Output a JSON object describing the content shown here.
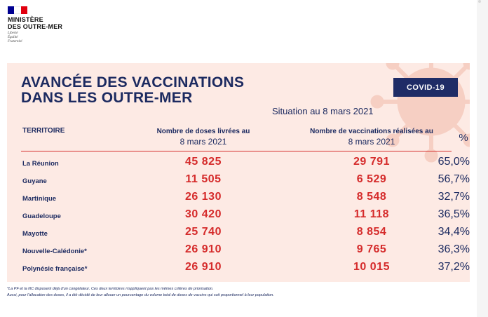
{
  "logo": {
    "ministry_line1": "MINISTÈRE",
    "ministry_line2": "DES OUTRE-MER",
    "motto": [
      "Liberté",
      "Égalité",
      "Fraternité"
    ],
    "flag_colors": [
      "#000091",
      "#ffffff",
      "#e1000f"
    ]
  },
  "title_line1": "AVANCÉE DES VACCINATIONS",
  "title_line2": "DANS LES OUTRE-MER",
  "badge": "COVID-19",
  "situation": "Situation au 8 mars 2021",
  "headers": {
    "territory": "TERRITOIRE",
    "doses_line1": "Nombre de doses livrées au",
    "doses_line2": "8 mars 2021",
    "vaccinations_line1": "Nombre de vaccinations réalisées au",
    "vaccinations_line2": "8 mars 2021",
    "percent": "%"
  },
  "rows": [
    {
      "territory": "La Réunion",
      "doses": "45 825",
      "vaccinations": "29 791",
      "percent": "65,0%"
    },
    {
      "territory": "Guyane",
      "doses": "11 505",
      "vaccinations": "6 529",
      "percent": "56,7%"
    },
    {
      "territory": "Martinique",
      "doses": "26 130",
      "vaccinations": "8 548",
      "percent": "32,7%"
    },
    {
      "territory": "Guadeloupe",
      "doses": "30 420",
      "vaccinations": "11 118",
      "percent": "36,5%"
    },
    {
      "territory": "Mayotte",
      "doses": "25 740",
      "vaccinations": "8 854",
      "percent": "34,4%"
    },
    {
      "territory": "Nouvelle-Calédonie*",
      "doses": "26 910",
      "vaccinations": "9 765",
      "percent": "36,3%"
    },
    {
      "territory": "Polynésie française*",
      "doses": "26 910",
      "vaccinations": "10 015",
      "percent": "37,2%"
    }
  ],
  "footnote_line1": "*La PF et la NC disposent déjà d'un congélateur. Ces deux territoires n'appliquent pas les mêmes critères de priorisation.",
  "footnote_line2": "Aussi, pour l'allocation des doses, il a été décidé de leur allouer un pourcentage du volume total de doses de vaccins qui soit proportionnel à leur population.",
  "colors": {
    "navy": "#1c2a60",
    "accent_red": "#d52b2b",
    "panel_bg": "#fdeae4",
    "badge_bg": "#1f2c66"
  }
}
